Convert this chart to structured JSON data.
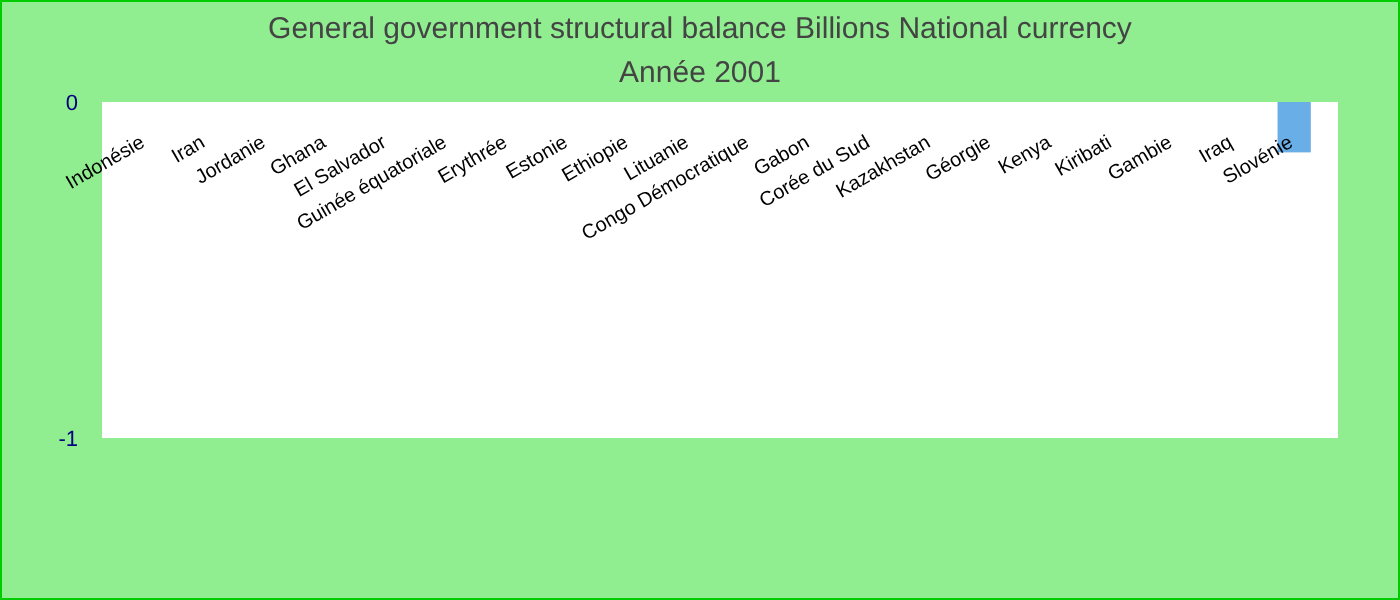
{
  "chart_data": {
    "type": "bar",
    "title": "General government structural balance Billions National currency",
    "subtitle": "Année 2001",
    "categories": [
      "Indonésie",
      "Iran",
      "Jordanie",
      "Ghana",
      "El Salvador",
      "Guinée équatoriale",
      "Erythrée",
      "Estonie",
      "Ethiopie",
      "Lituanie",
      "Congo Démocratique",
      "Gabon",
      "Corée du Sud",
      "Kazakhstan",
      "Géorgie",
      "Kenya",
      "Kiribati",
      "Gambie",
      "Iraq",
      "Slovénie"
    ],
    "values": [
      null,
      null,
      null,
      null,
      null,
      null,
      null,
      null,
      null,
      null,
      null,
      null,
      null,
      null,
      null,
      null,
      null,
      null,
      null,
      -0.15
    ],
    "color": "#6aaee8",
    "ylim": [
      -1,
      0
    ],
    "yticks": [
      -1,
      0
    ],
    "grid": false
  }
}
